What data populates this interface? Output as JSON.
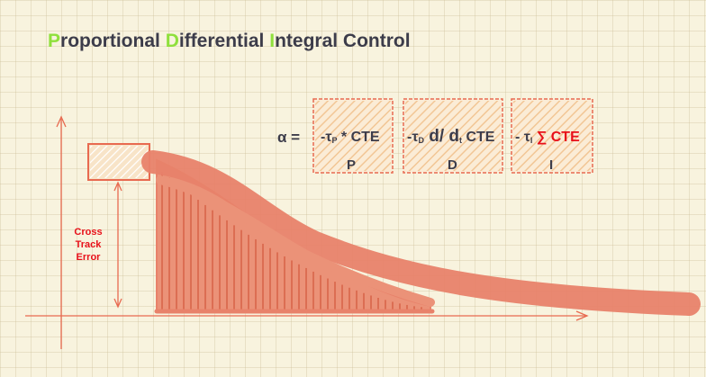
{
  "title": {
    "parts": [
      {
        "cap": "P",
        "rest": "roportional "
      },
      {
        "cap": "D",
        "rest": "ifferential "
      },
      {
        "cap": "I",
        "rest": "ntegral Control"
      }
    ]
  },
  "formula": {
    "lhs": "α =",
    "terms": [
      {
        "prefix": "-τ",
        "sub": "P",
        "body": " * CTE",
        "label": "P"
      },
      {
        "prefix": "-τ",
        "sub": "D",
        "mid": " d/ d",
        "sub2": "t",
        "body": " CTE",
        "label": "D"
      },
      {
        "prefix": "- τ",
        "sub": "I",
        "sigma": " ∑ CTE",
        "label": "I"
      }
    ]
  },
  "error_label": [
    "Cross",
    "Track",
    "Error"
  ],
  "colors": {
    "title_caps": "#8fe03c",
    "title_text": "#3c3c4a",
    "curve": "#e8826a",
    "hatch_box": "#f0bf8a",
    "box_border": "#e86a50",
    "accent_red": "#e8101a"
  }
}
